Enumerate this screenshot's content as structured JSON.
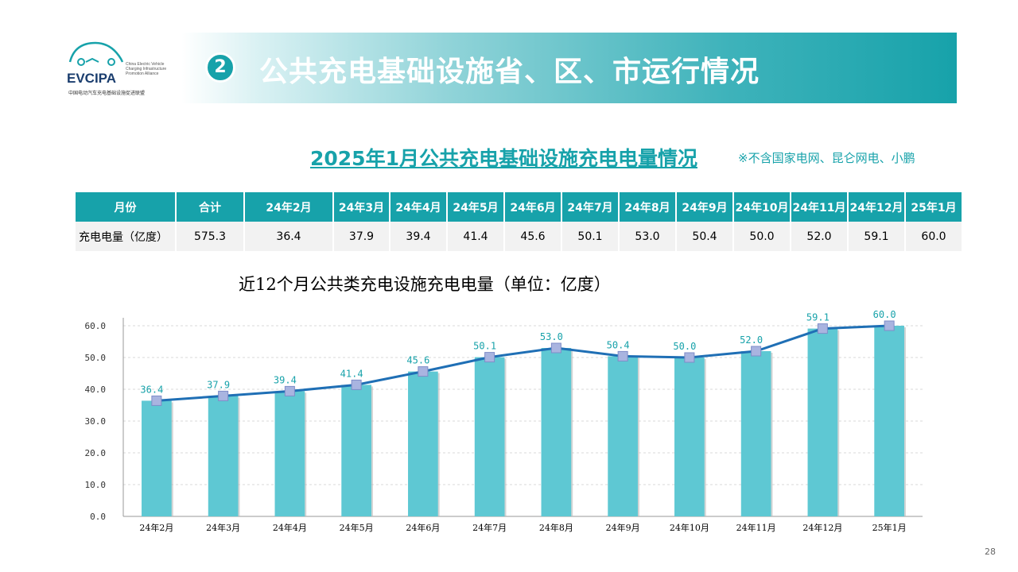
{
  "logo": {
    "brand": "EVCIPA",
    "english": [
      "China Electric Vehicle",
      "Charging Infrastructure",
      "Promotion Alliance"
    ],
    "org_name": "中国电动汽车充电基础设施促进联盟"
  },
  "header": {
    "number": "2",
    "title": "公共充电基础设施省、区、市运行情况"
  },
  "subtitle": "2025年1月公共充电基础设施充电电量情况",
  "note": "※不含国家电网、昆仑网电、小鹏",
  "table": {
    "columns": [
      "月份",
      "合计",
      "24年2月",
      "24年3月",
      "24年4月",
      "24年5月",
      "24年6月",
      "24年7月",
      "24年8月",
      "24年9月",
      "24年10月",
      "24年11月",
      "24年12月",
      "25年1月"
    ],
    "row": [
      "充电电量（亿度）",
      "575.3",
      "36.4",
      "37.9",
      "39.4",
      "41.4",
      "45.6",
      "50.1",
      "53.0",
      "50.4",
      "50.0",
      "52.0",
      "59.1",
      "60.0"
    ]
  },
  "chart_title": "近12个月公共类充电设施充电电量（单位：亿度）",
  "chart_data": {
    "type": "bar",
    "categories": [
      "24年2月",
      "24年3月",
      "24年4月",
      "24年5月",
      "24年6月",
      "24年7月",
      "24年8月",
      "24年9月",
      "24年10月",
      "24年11月",
      "24年12月",
      "25年1月"
    ],
    "series": [
      {
        "values": [
          36.4,
          37.9,
          39.4,
          41.4,
          45.6,
          50.1,
          53.0,
          50.4,
          50.0,
          52.0,
          59.1,
          60.0
        ]
      }
    ],
    "line_overlay": true,
    "data_labels": [
      "36.4",
      "37.9",
      "39.4",
      "41.4",
      "45.6",
      "50.1",
      "53.0",
      "50.4",
      "50.0",
      "52.0",
      "59.1",
      "60.0"
    ],
    "yticks": [
      "0.0",
      "10.0",
      "20.0",
      "30.0",
      "40.0",
      "50.0",
      "60.0"
    ],
    "ylim": [
      0,
      60
    ],
    "grid": true,
    "title": "",
    "xlabel": "",
    "ylabel": "",
    "colors": {
      "bar": "#5ec8d3",
      "line": "#1f6fb5",
      "marker": "#a9b4e0",
      "label": "#17a2aa"
    }
  },
  "page_number": "28"
}
